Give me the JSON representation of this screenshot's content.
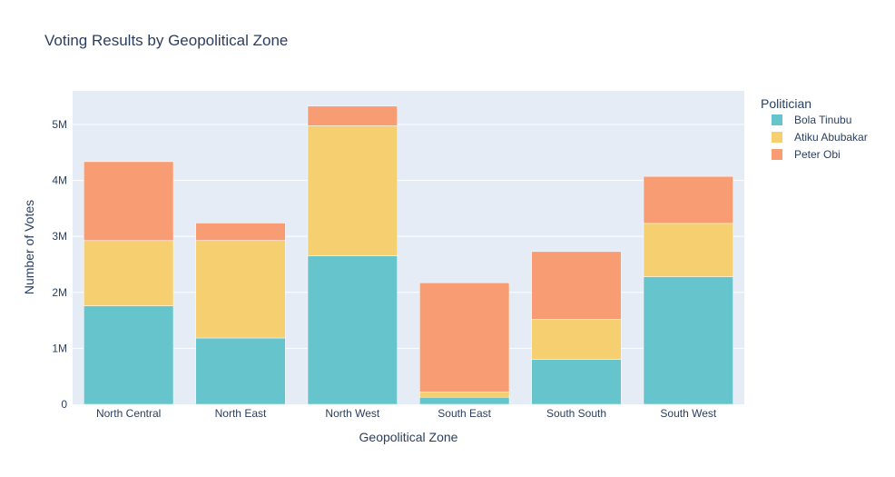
{
  "chart_data": {
    "type": "bar",
    "barmode": "stack",
    "title": "Voting Results by Geopolitical Zone",
    "xlabel": "Geopolitical Zone",
    "ylabel": "Number of Votes",
    "categories": [
      "North Central",
      "North East",
      "North West",
      "South East",
      "South South",
      "South West"
    ],
    "series": [
      {
        "name": "Bola Tinubu",
        "color": "#66c5cc",
        "values": [
          1760000,
          1185000,
          2652000,
          127000,
          800000,
          2280000
        ]
      },
      {
        "name": "Atiku Abubakar",
        "color": "#f6cf71",
        "values": [
          1165000,
          1742000,
          2325000,
          92000,
          718000,
          952000
        ]
      },
      {
        "name": "Peter Obi",
        "color": "#f89c74",
        "values": [
          1410000,
          312000,
          350000,
          1953000,
          1211000,
          840000
        ]
      }
    ],
    "ylim": [
      0,
      5600000
    ],
    "yticks": [
      0,
      1000000,
      2000000,
      3000000,
      4000000,
      5000000
    ],
    "ytick_labels": [
      "0",
      "1M",
      "2M",
      "3M",
      "4M",
      "5M"
    ],
    "legend_title": "Politician",
    "legend_position": "right",
    "grid": true,
    "plot_background": "#e5ecf6"
  }
}
